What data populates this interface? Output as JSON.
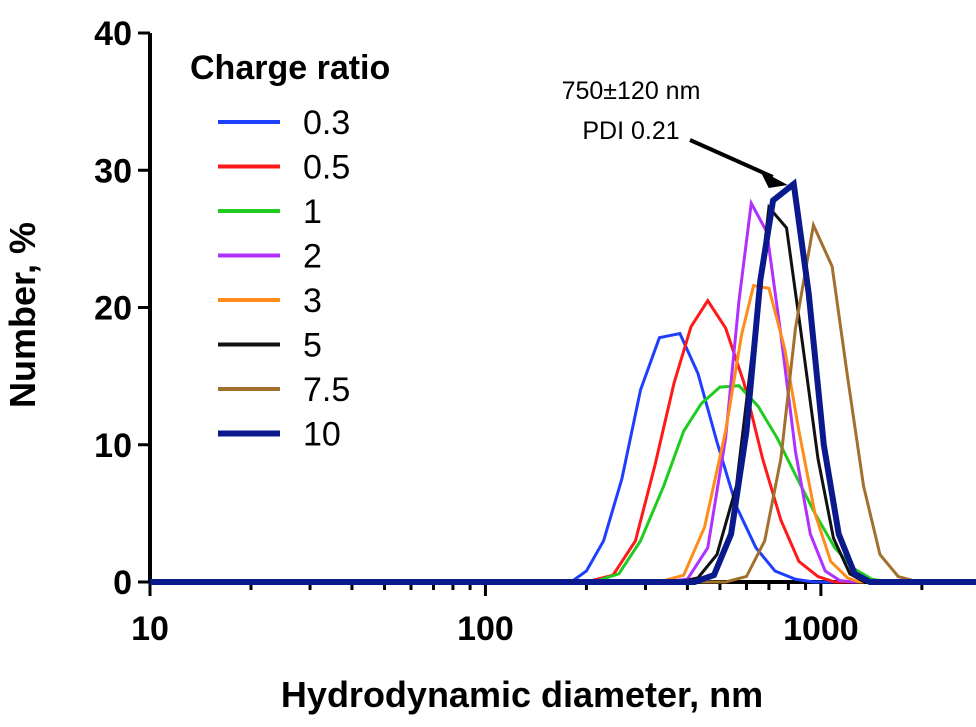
{
  "chart_data": {
    "type": "line",
    "xlabel": "Hydrodynamic diameter, nm",
    "ylabel": "Number, %",
    "x_scale": "log",
    "xlim": [
      10,
      2900
    ],
    "ylim": [
      0,
      40
    ],
    "y_ticks": [
      "0",
      "10",
      "20",
      "30",
      "40"
    ],
    "x_ticks": [
      "10",
      "100",
      "1000"
    ],
    "grid": false,
    "legend": {
      "title": "Charge ratio",
      "placement": "top-left"
    },
    "annotation": {
      "lines": [
        "750±120 nm",
        "PDI 0.21"
      ],
      "target": [
        830,
        29.0
      ]
    },
    "series": [
      {
        "name": "0.3",
        "color": "#1f3fff",
        "width": 3,
        "points": [
          [
            10,
            0
          ],
          [
            180,
            0
          ],
          [
            200,
            0.8
          ],
          [
            225,
            3.0
          ],
          [
            255,
            7.5
          ],
          [
            290,
            14.0
          ],
          [
            330,
            17.8
          ],
          [
            380,
            18.1
          ],
          [
            430,
            15.2
          ],
          [
            490,
            10.2
          ],
          [
            560,
            5.5
          ],
          [
            640,
            2.5
          ],
          [
            730,
            0.8
          ],
          [
            840,
            0.2
          ],
          [
            950,
            0
          ],
          [
            2900,
            0
          ]
        ]
      },
      {
        "name": "0.5",
        "color": "#ff1a1a",
        "width": 3,
        "points": [
          [
            10,
            0
          ],
          [
            200,
            0
          ],
          [
            240,
            0.5
          ],
          [
            280,
            3.0
          ],
          [
            320,
            8.5
          ],
          [
            365,
            14.5
          ],
          [
            410,
            18.6
          ],
          [
            460,
            20.5
          ],
          [
            520,
            18.5
          ],
          [
            590,
            14.5
          ],
          [
            670,
            9.0
          ],
          [
            760,
            4.5
          ],
          [
            860,
            1.5
          ],
          [
            980,
            0.4
          ],
          [
            1100,
            0
          ],
          [
            2900,
            0
          ]
        ]
      },
      {
        "name": "1",
        "color": "#1fcc1f",
        "width": 3,
        "points": [
          [
            10,
            0
          ],
          [
            210,
            0
          ],
          [
            250,
            0.6
          ],
          [
            290,
            3.0
          ],
          [
            340,
            7.0
          ],
          [
            390,
            11.0
          ],
          [
            440,
            13.0
          ],
          [
            500,
            14.2
          ],
          [
            570,
            14.3
          ],
          [
            650,
            12.8
          ],
          [
            740,
            10.5
          ],
          [
            840,
            7.8
          ],
          [
            960,
            5.0
          ],
          [
            1100,
            2.5
          ],
          [
            1250,
            1.0
          ],
          [
            1420,
            0.2
          ],
          [
            1600,
            0
          ],
          [
            2900,
            0
          ]
        ]
      },
      {
        "name": "2",
        "color": "#b030ff",
        "width": 3,
        "points": [
          [
            10,
            0
          ],
          [
            340,
            0
          ],
          [
            400,
            0.2
          ],
          [
            460,
            2.5
          ],
          [
            520,
            10.5
          ],
          [
            570,
            20.5
          ],
          [
            620,
            27.6
          ],
          [
            690,
            25.5
          ],
          [
            760,
            18.0
          ],
          [
            840,
            9.5
          ],
          [
            930,
            3.5
          ],
          [
            1030,
            0.8
          ],
          [
            1140,
            0.1
          ],
          [
            1250,
            0
          ],
          [
            2900,
            0
          ]
        ]
      },
      {
        "name": "3",
        "color": "#ff8c1a",
        "width": 3,
        "points": [
          [
            10,
            0
          ],
          [
            330,
            0
          ],
          [
            390,
            0.5
          ],
          [
            450,
            4.0
          ],
          [
            520,
            11.0
          ],
          [
            580,
            18.0
          ],
          [
            630,
            21.6
          ],
          [
            700,
            21.4
          ],
          [
            780,
            17.0
          ],
          [
            860,
            11.0
          ],
          [
            960,
            5.0
          ],
          [
            1070,
            1.5
          ],
          [
            1200,
            0.3
          ],
          [
            1300,
            0
          ],
          [
            2900,
            0
          ]
        ]
      },
      {
        "name": "5",
        "color": "#111111",
        "width": 3,
        "points": [
          [
            10,
            0
          ],
          [
            380,
            0
          ],
          [
            430,
            0.3
          ],
          [
            490,
            2.0
          ],
          [
            560,
            7.0
          ],
          [
            630,
            17.5
          ],
          [
            700,
            27.3
          ],
          [
            790,
            25.8
          ],
          [
            880,
            17.5
          ],
          [
            980,
            9.0
          ],
          [
            1090,
            3.2
          ],
          [
            1220,
            0.6
          ],
          [
            1350,
            0
          ],
          [
            2900,
            0
          ]
        ]
      },
      {
        "name": "7.5",
        "color": "#a2702e",
        "width": 3,
        "points": [
          [
            10,
            0
          ],
          [
            520,
            0
          ],
          [
            600,
            0.4
          ],
          [
            680,
            3.0
          ],
          [
            760,
            9.0
          ],
          [
            840,
            18.5
          ],
          [
            950,
            26.0
          ],
          [
            1080,
            23.0
          ],
          [
            1200,
            15.0
          ],
          [
            1340,
            7.0
          ],
          [
            1500,
            2.0
          ],
          [
            1700,
            0.4
          ],
          [
            1950,
            0
          ],
          [
            2900,
            0
          ]
        ]
      },
      {
        "name": "10",
        "color": "#0a1a8c",
        "width": 6,
        "points": [
          [
            10,
            0
          ],
          [
            420,
            0
          ],
          [
            480,
            0.5
          ],
          [
            540,
            3.5
          ],
          [
            600,
            11.0
          ],
          [
            660,
            22.0
          ],
          [
            720,
            27.8
          ],
          [
            830,
            29.0
          ],
          [
            920,
            21.0
          ],
          [
            1020,
            10.0
          ],
          [
            1130,
            3.5
          ],
          [
            1260,
            0.6
          ],
          [
            1400,
            0
          ],
          [
            2900,
            0
          ]
        ]
      }
    ]
  }
}
